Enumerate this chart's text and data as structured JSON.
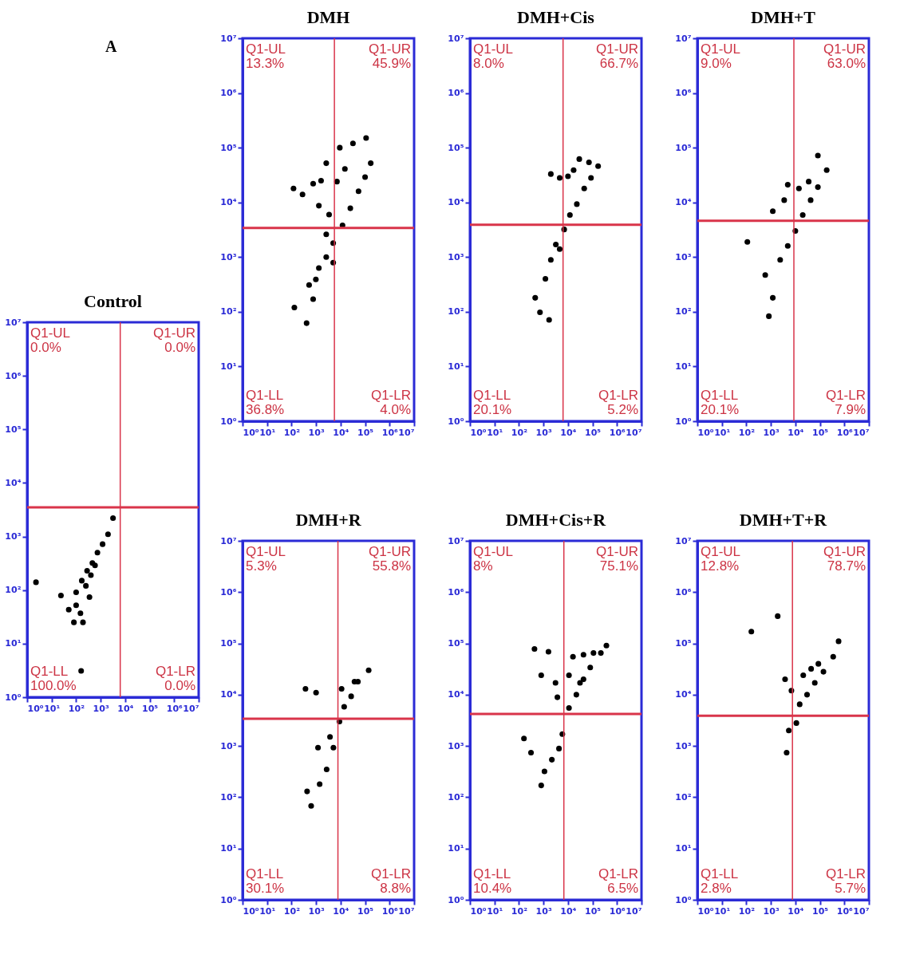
{
  "chart_data": [
    {
      "type": "scatter",
      "title": "Control",
      "log": "xy",
      "marker": "circle",
      "grid": false,
      "xlim": [
        1,
        10000000
      ],
      "ylim": [
        1,
        10000000
      ],
      "xticks": [
        {
          "value": 1,
          "label": "10⁰"
        },
        {
          "value": 10,
          "label": "10¹"
        },
        {
          "value": 100,
          "label": "10²"
        },
        {
          "value": 1000,
          "label": "10³"
        },
        {
          "value": 10000,
          "label": "10⁴"
        },
        {
          "value": 100000,
          "label": "10⁵"
        },
        {
          "value": 1000000,
          "label": "10⁶"
        },
        {
          "value": 10000000,
          "label": "10⁷"
        }
      ],
      "yticks": [
        {
          "value": 1,
          "label": "10⁰"
        },
        {
          "value": 10,
          "label": "10¹"
        },
        {
          "value": 100,
          "label": "10²"
        },
        {
          "value": 1000,
          "label": "10³"
        },
        {
          "value": 10000,
          "label": "10⁴"
        },
        {
          "value": 100000,
          "label": "10⁵"
        },
        {
          "value": 1000000,
          "label": "10⁶"
        },
        {
          "value": 10000000,
          "label": "10⁷"
        }
      ],
      "series": [
        {
          "color": "#000000",
          "x": [
            2.3,
            24,
            50,
            81,
            190,
            150,
            100,
            170,
            280,
            460,
            740,
            1200,
            2000,
            3200,
            160,
            250,
            400,
            590,
            350,
            100
          ],
          "values": [
            140,
            79,
            43,
            25,
            25,
            37,
            91,
            150,
            230,
            320,
            500,
            720,
            1100,
            2200,
            3.1,
            120,
            190,
            290,
            74,
            52
          ]
        }
      ],
      "ref_lines": [
        {
          "axis": "x",
          "value": 6300,
          "color": "#d9344a"
        },
        {
          "axis": "y",
          "value": 3500,
          "color": "#d9344a"
        }
      ],
      "annotations": [
        "Q1-UL",
        "0.0%",
        "Q1-UR",
        "0.0%",
        "Q1-LL",
        "100.0%",
        "Q1-LR",
        "0.0%",
        "A"
      ]
    },
    {
      "type": "scatter",
      "title": "DMH",
      "log": "xy",
      "marker": "circle",
      "grid": false,
      "xlim": [
        1,
        10000000
      ],
      "ylim": [
        1,
        10000000
      ],
      "xticks": [
        {
          "value": 1,
          "label": "10⁰"
        },
        {
          "value": 10,
          "label": "10¹"
        },
        {
          "value": 100,
          "label": "10²"
        },
        {
          "value": 1000,
          "label": "10³"
        },
        {
          "value": 10000,
          "label": "10⁴"
        },
        {
          "value": 100000,
          "label": "10⁵"
        },
        {
          "value": 1000000,
          "label": "10⁶"
        },
        {
          "value": 10000000,
          "label": "10⁷"
        }
      ],
      "yticks": [
        {
          "value": 1,
          "label": "10⁰"
        },
        {
          "value": 10,
          "label": "10¹"
        },
        {
          "value": 100,
          "label": "10²"
        },
        {
          "value": 1000,
          "label": "10³"
        },
        {
          "value": 10000,
          "label": "10⁴"
        },
        {
          "value": 100000,
          "label": "10⁵"
        },
        {
          "value": 1000000,
          "label": "10⁶"
        },
        {
          "value": 10000000,
          "label": "10⁷"
        }
      ],
      "series": [
        {
          "color": "#000000",
          "x": [
            520,
            1300,
            2600,
            5000,
            12000,
            25000,
            54000,
            100000,
            170000,
            120,
            280,
            760,
            1600,
            2600,
            7100,
            9300,
            15000,
            32000,
            110000,
            1300,
            3400,
            130,
            410,
            760,
            980,
            2600,
            5000
          ],
          "values": [
            310,
            630,
            1000,
            1800,
            3800,
            7800,
            16000,
            29000,
            52000,
            18000,
            14000,
            22000,
            25000,
            52000,
            24000,
            100000,
            41000,
            120000,
            150000,
            8700,
            6000,
            120,
            62,
            170,
            390,
            2600,
            790
          ]
        }
      ],
      "ref_lines": [
        {
          "axis": "x",
          "value": 5600,
          "color": "#d9344a"
        },
        {
          "axis": "y",
          "value": 3400,
          "color": "#d9344a"
        }
      ],
      "annotations": [
        "Q1-UL",
        "13.3%",
        "Q1-UR",
        "45.9%",
        "Q1-LL",
        "36.8%",
        "Q1-LR",
        "4.0%"
      ]
    },
    {
      "type": "scatter",
      "title": "DMH+Cis",
      "log": "xy",
      "marker": "circle",
      "grid": false,
      "xlim": [
        1,
        10000000
      ],
      "ylim": [
        1,
        10000000
      ],
      "xticks": [
        {
          "value": 1,
          "label": "10⁰"
        },
        {
          "value": 10,
          "label": "10¹"
        },
        {
          "value": 100,
          "label": "10²"
        },
        {
          "value": 1000,
          "label": "10³"
        },
        {
          "value": 10000,
          "label": "10⁴"
        },
        {
          "value": 100000,
          "label": "10⁵"
        },
        {
          "value": 1000000,
          "label": "10⁶"
        },
        {
          "value": 10000000,
          "label": "10⁷"
        }
      ],
      "yticks": [
        {
          "value": 1,
          "label": "10⁰"
        },
        {
          "value": 10,
          "label": "10¹"
        },
        {
          "value": 100,
          "label": "10²"
        },
        {
          "value": 1000,
          "label": "10³"
        },
        {
          "value": 10000,
          "label": "10⁴"
        },
        {
          "value": 100000,
          "label": "10⁵"
        },
        {
          "value": 1000000,
          "label": "10⁶"
        },
        {
          "value": 10000000,
          "label": "10⁷"
        }
      ],
      "series": [
        {
          "color": "#000000",
          "x": [
            3200,
            7000,
            12000,
            23000,
            46000,
            87000,
            170000,
            2000,
            4600,
            10000,
            17000,
            29000,
            72000,
            460,
            720,
            1200,
            2000,
            4600,
            1700
          ],
          "values": [
            1700,
            3200,
            5900,
            9300,
            18000,
            28000,
            46000,
            33000,
            28000,
            30000,
            39000,
            62000,
            54000,
            180,
            98,
            400,
            890,
            1400,
            71
          ]
        }
      ],
      "ref_lines": [
        {
          "axis": "x",
          "value": 6300,
          "color": "#d9344a"
        },
        {
          "axis": "y",
          "value": 3900,
          "color": "#d9344a"
        }
      ],
      "annotations": [
        "Q1-UL",
        "8.0%",
        "Q1-UR",
        "66.7%",
        "Q1-LL",
        "20.1%",
        "Q1-LR",
        "5.2%"
      ]
    },
    {
      "type": "scatter",
      "title": "DMH+T",
      "log": "xy",
      "marker": "circle",
      "grid": false,
      "xlim": [
        1,
        10000000
      ],
      "ylim": [
        1,
        10000000
      ],
      "xticks": [
        {
          "value": 1,
          "label": "10⁰"
        },
        {
          "value": 10,
          "label": "10¹"
        },
        {
          "value": 100,
          "label": "10²"
        },
        {
          "value": 1000,
          "label": "10³"
        },
        {
          "value": 10000,
          "label": "10⁴"
        },
        {
          "value": 100000,
          "label": "10⁵"
        },
        {
          "value": 1000000,
          "label": "10⁶"
        },
        {
          "value": 10000000,
          "label": "10⁷"
        }
      ],
      "yticks": [
        {
          "value": 1,
          "label": "10⁰"
        },
        {
          "value": 10,
          "label": "10¹"
        },
        {
          "value": 100,
          "label": "10²"
        },
        {
          "value": 1000,
          "label": "10³"
        },
        {
          "value": 10000,
          "label": "10⁴"
        },
        {
          "value": 100000,
          "label": "10⁵"
        },
        {
          "value": 1000000,
          "label": "10⁶"
        },
        {
          "value": 10000000,
          "label": "10⁷"
        }
      ],
      "series": [
        {
          "color": "#000000",
          "x": [
            4900,
            10000,
            20000,
            42000,
            83000,
            190000,
            4900,
            14000,
            35000,
            83000,
            3500,
            1200,
            110,
            590,
            1200,
            830,
            2400
          ],
          "values": [
            1600,
            3000,
            5900,
            11000,
            19000,
            39000,
            21000,
            18000,
            24000,
            72000,
            11000,
            6900,
            1900,
            470,
            180,
            83,
            890
          ]
        }
      ],
      "ref_lines": [
        {
          "axis": "x",
          "value": 8700,
          "color": "#d9344a"
        },
        {
          "axis": "y",
          "value": 4600,
          "color": "#d9344a"
        }
      ],
      "annotations": [
        "Q1-UL",
        "9.0%",
        "Q1-UR",
        "63.0%",
        "Q1-LL",
        "20.1%",
        "Q1-LR",
        "7.9%"
      ]
    },
    {
      "type": "scatter",
      "title": "DMH+R",
      "log": "xy",
      "marker": "circle",
      "grid": false,
      "xlim": [
        1,
        10000000
      ],
      "ylim": [
        1,
        10000000
      ],
      "xticks": [
        {
          "value": 1,
          "label": "10⁰"
        },
        {
          "value": 10,
          "label": "10¹"
        },
        {
          "value": 100,
          "label": "10²"
        },
        {
          "value": 1000,
          "label": "10³"
        },
        {
          "value": 10000,
          "label": "10⁴"
        },
        {
          "value": 100000,
          "label": "10⁵"
        },
        {
          "value": 1000000,
          "label": "10⁶"
        },
        {
          "value": 10000000,
          "label": "10⁷"
        }
      ],
      "yticks": [
        {
          "value": 1,
          "label": "10⁰"
        },
        {
          "value": 10,
          "label": "10¹"
        },
        {
          "value": 100,
          "label": "10²"
        },
        {
          "value": 1000,
          "label": "10³"
        },
        {
          "value": 10000,
          "label": "10⁴"
        },
        {
          "value": 100000,
          "label": "10⁵"
        },
        {
          "value": 1000000,
          "label": "10⁶"
        },
        {
          "value": 10000000,
          "label": "10⁷"
        }
      ],
      "series": [
        {
          "color": "#000000",
          "x": [
            3700,
            9000,
            14000,
            27000,
            51000,
            140000,
            11000,
            37000,
            370,
            1000,
            2700,
            1400,
            630,
            430,
            1200,
            5100
          ],
          "values": [
            1500,
            3000,
            5800,
            9300,
            18000,
            30000,
            13000,
            18000,
            13000,
            11000,
            350,
            180,
            68,
            130,
            930,
            930
          ]
        }
      ],
      "ref_lines": [
        {
          "axis": "x",
          "value": 7800,
          "color": "#d9344a"
        },
        {
          "axis": "y",
          "value": 3400,
          "color": "#d9344a"
        }
      ],
      "annotations": [
        "Q1-UL",
        "5.3%",
        "Q1-UR",
        "55.8%",
        "Q1-LL",
        "30.1%",
        "Q1-LR",
        "8.8%"
      ]
    },
    {
      "type": "scatter",
      "title": "DMH+Cis+R",
      "log": "xy",
      "marker": "circle",
      "grid": false,
      "xlim": [
        1,
        10000000
      ],
      "ylim": [
        1,
        10000000
      ],
      "xticks": [
        {
          "value": 1,
          "label": "10⁰"
        },
        {
          "value": 10,
          "label": "10¹"
        },
        {
          "value": 100,
          "label": "10²"
        },
        {
          "value": 1000,
          "label": "10³"
        },
        {
          "value": 10000,
          "label": "10⁴"
        },
        {
          "value": 100000,
          "label": "10⁵"
        },
        {
          "value": 1000000,
          "label": "10⁶"
        },
        {
          "value": 10000000,
          "label": "10⁷"
        }
      ],
      "yticks": [
        {
          "value": 1,
          "label": "10⁰"
        },
        {
          "value": 10,
          "label": "10¹"
        },
        {
          "value": 100,
          "label": "10²"
        },
        {
          "value": 1000,
          "label": "10³"
        },
        {
          "value": 10000,
          "label": "10⁴"
        },
        {
          "value": 100000,
          "label": "10⁵"
        },
        {
          "value": 1000000,
          "label": "10⁶"
        },
        {
          "value": 10000000,
          "label": "10⁷"
        }
      ],
      "series": [
        {
          "color": "#000000",
          "x": [
            11000,
            22000,
            43000,
            81000,
            220000,
            370000,
            16000,
            43000,
            110000,
            11000,
            31000,
            430,
            1600,
            810,
            3100,
            3700,
            160,
            310,
            1100,
            2200,
            810,
            5900,
            4300
          ],
          "values": [
            5500,
            10000,
            20000,
            34000,
            65000,
            91000,
            55000,
            60000,
            65000,
            24000,
            17000,
            78000,
            69000,
            24000,
            17000,
            8900,
            1400,
            740,
            320,
            540,
            170,
            1700,
            890
          ]
        }
      ],
      "ref_lines": [
        {
          "axis": "x",
          "value": 6800,
          "color": "#d9344a"
        },
        {
          "axis": "y",
          "value": 4200,
          "color": "#d9344a"
        }
      ],
      "annotations": [
        "Q1-UL",
        "8%",
        "Q1-UR",
        "75.1%",
        "Q1-LL",
        "10.4%",
        "Q1-LR",
        "6.5%"
      ]
    },
    {
      "type": "scatter",
      "title": "DMH+T+R",
      "log": "xy",
      "marker": "circle",
      "grid": false,
      "xlim": [
        1,
        10000000
      ],
      "ylim": [
        1,
        10000000
      ],
      "xticks": [
        {
          "value": 1,
          "label": "10⁰"
        },
        {
          "value": 10,
          "label": "10¹"
        },
        {
          "value": 100,
          "label": "10²"
        },
        {
          "value": 1000,
          "label": "10³"
        },
        {
          "value": 10000,
          "label": "10⁴"
        },
        {
          "value": 100000,
          "label": "10⁵"
        },
        {
          "value": 1000000,
          "label": "10⁶"
        },
        {
          "value": 10000000,
          "label": "10⁷"
        }
      ],
      "yticks": [
        {
          "value": 1,
          "label": "10⁰"
        },
        {
          "value": 10,
          "label": "10¹"
        },
        {
          "value": 100,
          "label": "10²"
        },
        {
          "value": 1000,
          "label": "10³"
        },
        {
          "value": 10000,
          "label": "10⁴"
        },
        {
          "value": 100000,
          "label": "10⁵"
        },
        {
          "value": 1000000,
          "label": "10⁶"
        },
        {
          "value": 10000000,
          "label": "10⁷"
        }
      ],
      "series": [
        {
          "color": "#000000",
          "x": [
            15000,
            30000,
            62000,
            140000,
            350000,
            580000,
            21000,
            44000,
            87000,
            1900,
            160,
            3800,
            6900,
            5400,
            4400,
            11000
          ],
          "values": [
            6500,
            10000,
            17000,
            28000,
            55000,
            110000,
            24000,
            32000,
            40000,
            340000,
            170000,
            20000,
            12000,
            2000,
            740,
            2800
          ]
        }
      ],
      "ref_lines": [
        {
          "axis": "x",
          "value": 7600,
          "color": "#d9344a"
        },
        {
          "axis": "y",
          "value": 3900,
          "color": "#d9344a"
        }
      ],
      "annotations": [
        "Q1-UL",
        "12.8%",
        "Q1-UR",
        "78.7%",
        "Q1-LL",
        "2.8%",
        "Q1-LR",
        "5.7%"
      ]
    }
  ]
}
